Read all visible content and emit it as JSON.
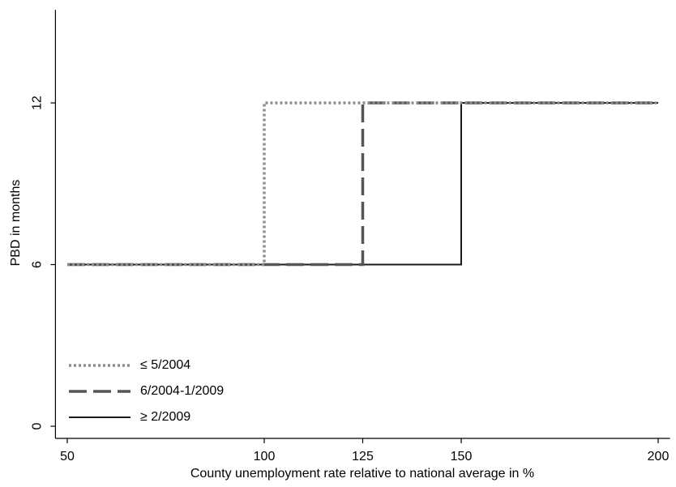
{
  "chart_data": {
    "type": "step-line",
    "x_label": "County unemployment rate relative to national average in %",
    "y_label": "PBD in months",
    "xlim": [
      47,
      203
    ],
    "xticks": [
      50,
      100,
      125,
      150,
      200
    ],
    "ylim": [
      -0.45,
      15.45
    ],
    "yticks": [
      0,
      6,
      12
    ],
    "grid": false,
    "legend": "lower left",
    "series": [
      {
        "name": "≤ 5/2004",
        "color": "#8c8c8c",
        "dash": "dotted",
        "x": [
          50,
          100,
          100,
          200
        ],
        "values": [
          6,
          6,
          12,
          12
        ]
      },
      {
        "name": "6/2004-1/2009",
        "color": "#555555",
        "dash": "dashed",
        "x": [
          50,
          125,
          125,
          200
        ],
        "values": [
          6,
          6,
          12,
          12
        ]
      },
      {
        "name": "≥ 2/2009",
        "color": "#1a1a1a",
        "dash": "solid",
        "x": [
          50,
          150,
          150,
          200
        ],
        "values": [
          6,
          6,
          12,
          12
        ]
      }
    ]
  }
}
